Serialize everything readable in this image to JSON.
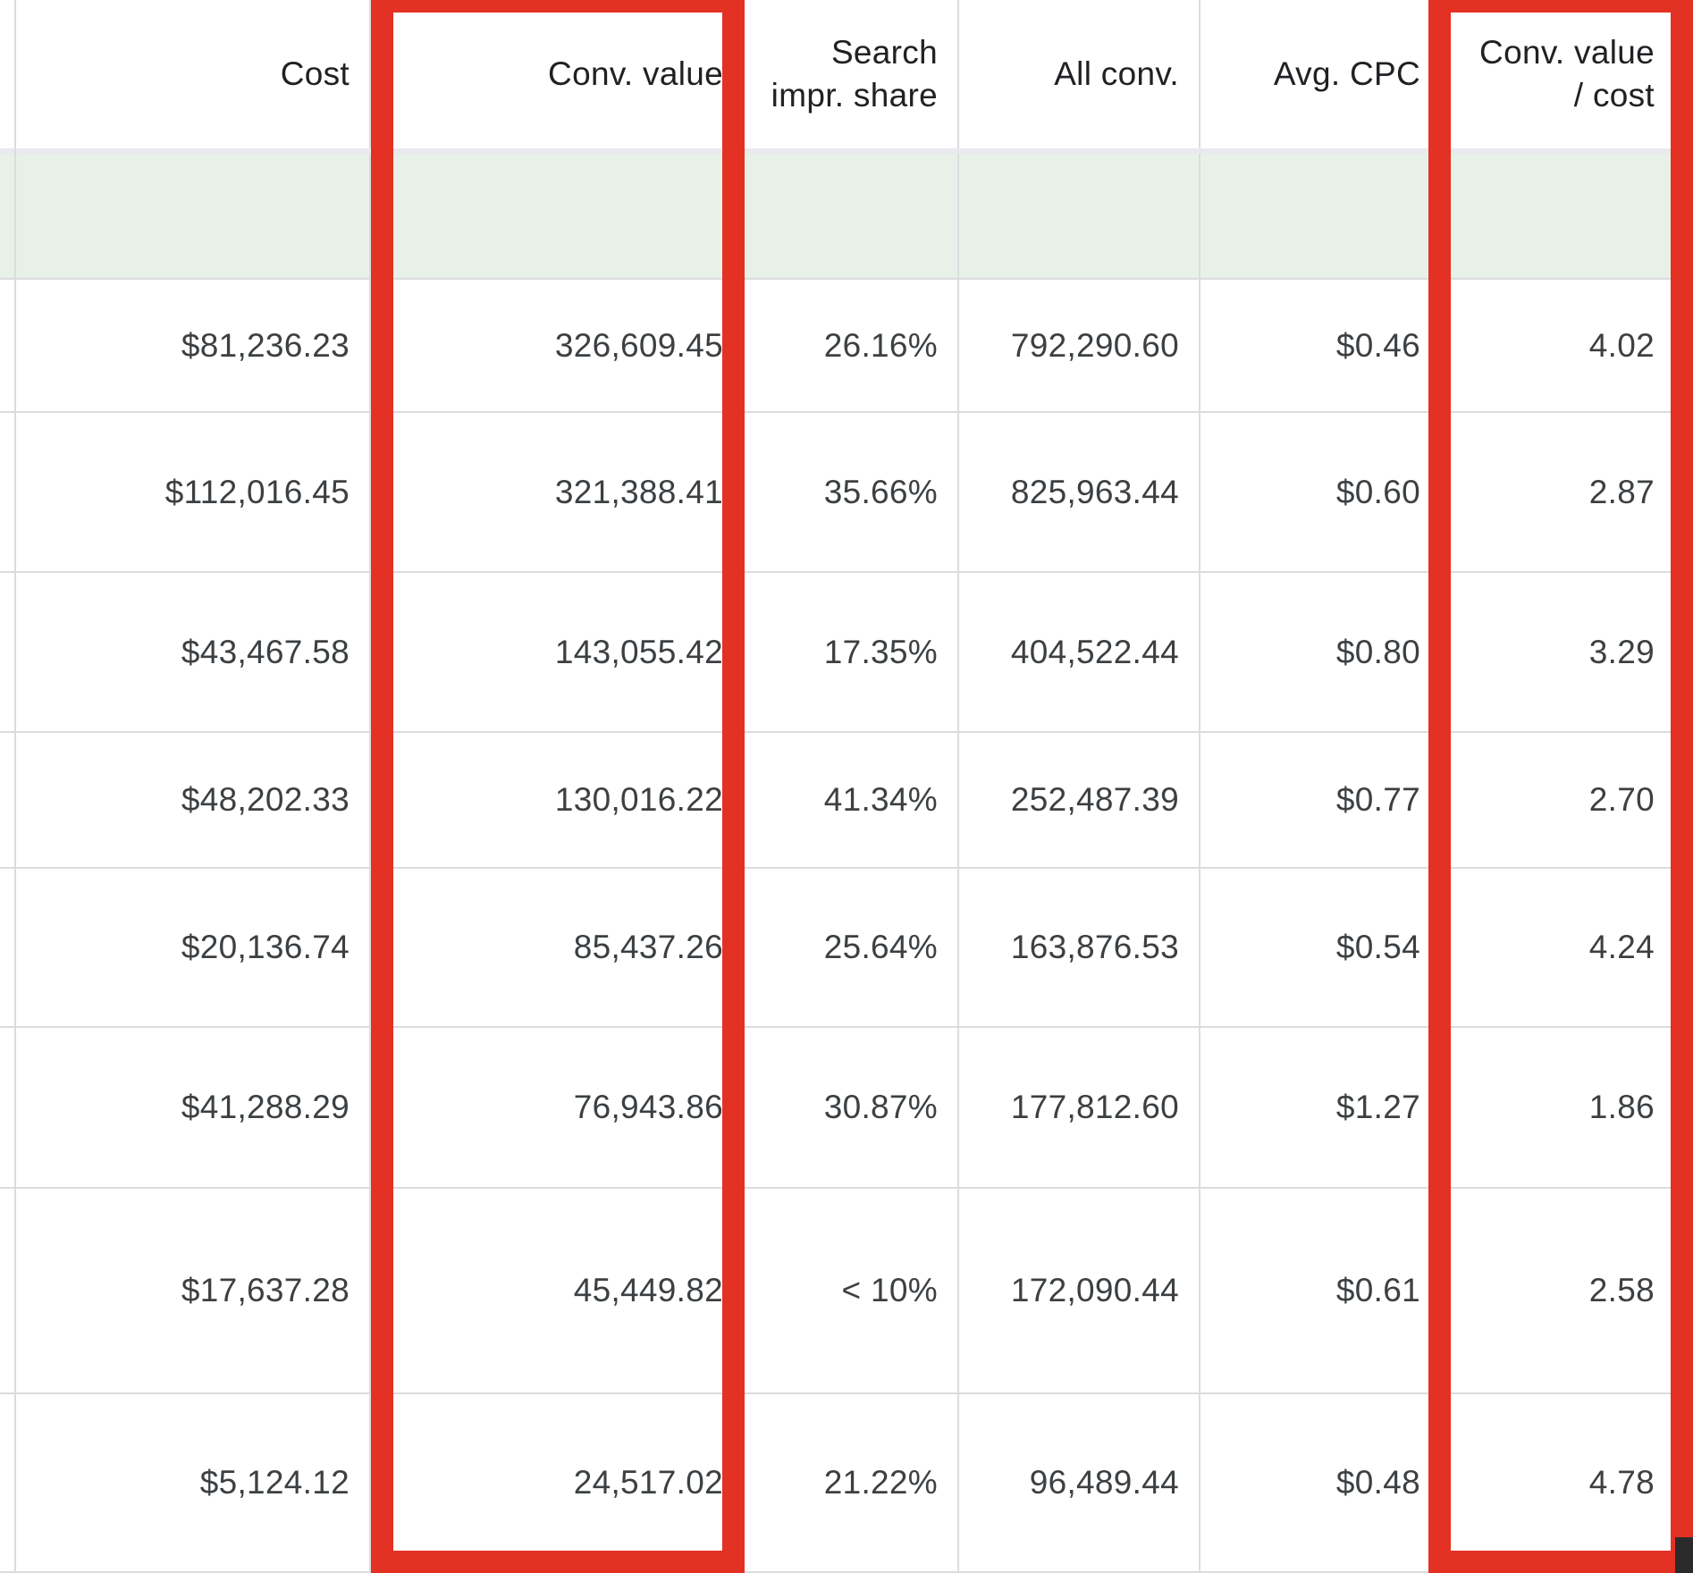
{
  "table": {
    "headers": {
      "cost": "Cost",
      "conv_value": "Conv. value",
      "search_impr_share_line1": "Search",
      "search_impr_share_line2": "impr. share",
      "all_conv": "All conv.",
      "avg_cpc": "Avg. CPC",
      "conv_value_cost_line1": "Conv. value",
      "conv_value_cost_line2": "/ cost"
    },
    "rows": [
      {
        "cost": "$81,236.23",
        "conv_value": "326,609.45",
        "search_impr_share": "26.16%",
        "all_conv": "792,290.60",
        "avg_cpc": "$0.46",
        "conv_value_cost": "4.02"
      },
      {
        "cost": "$112,016.45",
        "conv_value": "321,388.41",
        "search_impr_share": "35.66%",
        "all_conv": "825,963.44",
        "avg_cpc": "$0.60",
        "conv_value_cost": "2.87"
      },
      {
        "cost": "$43,467.58",
        "conv_value": "143,055.42",
        "search_impr_share": "17.35%",
        "all_conv": "404,522.44",
        "avg_cpc": "$0.80",
        "conv_value_cost": "3.29"
      },
      {
        "cost": "$48,202.33",
        "conv_value": "130,016.22",
        "search_impr_share": "41.34%",
        "all_conv": "252,487.39",
        "avg_cpc": "$0.77",
        "conv_value_cost": "2.70"
      },
      {
        "cost": "$20,136.74",
        "conv_value": "85,437.26",
        "search_impr_share": "25.64%",
        "all_conv": "163,876.53",
        "avg_cpc": "$0.54",
        "conv_value_cost": "4.24"
      },
      {
        "cost": "$41,288.29",
        "conv_value": "76,943.86",
        "search_impr_share": "30.87%",
        "all_conv": "177,812.60",
        "avg_cpc": "$1.27",
        "conv_value_cost": "1.86"
      },
      {
        "cost": "$17,637.28",
        "conv_value": "45,449.82",
        "search_impr_share": "< 10%",
        "all_conv": "172,090.44",
        "avg_cpc": "$0.61",
        "conv_value_cost": "2.58"
      },
      {
        "cost": "$5,124.12",
        "conv_value": "24,517.02",
        "search_impr_share": "21.22%",
        "all_conv": "96,489.44",
        "avg_cpc": "$0.48",
        "conv_value_cost": "4.78"
      }
    ]
  },
  "colors": {
    "highlight": "#e33124",
    "summary_row": "#e7f1e8",
    "grid_line": "#dadce0",
    "text": "#3c4043"
  }
}
